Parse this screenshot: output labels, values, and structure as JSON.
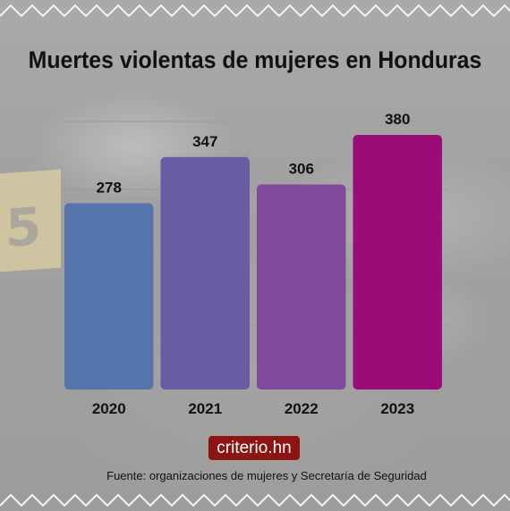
{
  "chart_data": {
    "type": "bar",
    "title": "Muertes violentas de mujeres en Honduras",
    "categories": [
      "2020",
      "2021",
      "2022",
      "2023"
    ],
    "values": [
      278,
      347,
      306,
      380
    ],
    "value_labels": [
      "278",
      "347",
      "306",
      "380"
    ],
    "colors": [
      "#5574ab",
      "#6a5ca3",
      "#7f4a9b",
      "#9a0d78"
    ],
    "ylim": [
      0,
      380
    ],
    "grid": true,
    "xlabel": "",
    "ylabel": ""
  },
  "brand": "criterio.hn",
  "source": "Fuente: organizaciones de mujeres y Secretaría de Seguridad"
}
